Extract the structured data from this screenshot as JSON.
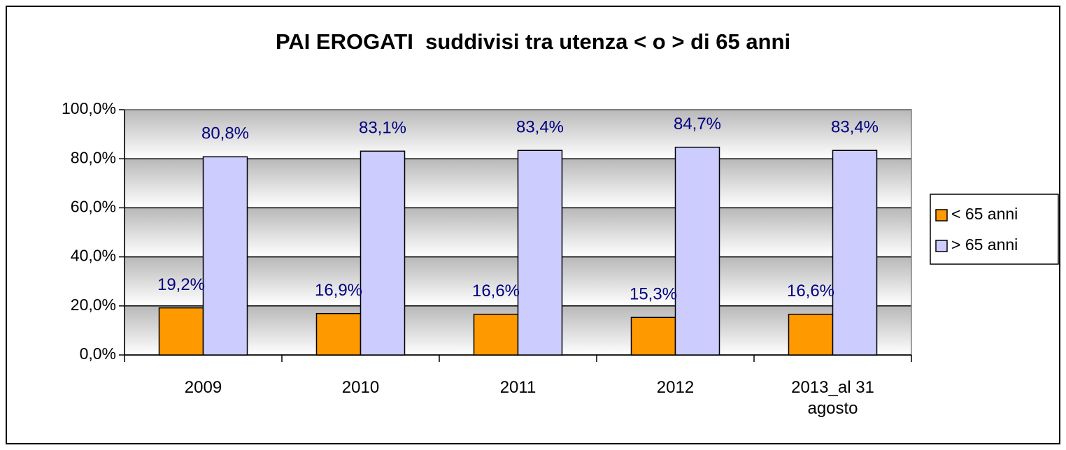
{
  "chart_data": {
    "type": "bar",
    "title": "PAI EROGATI  suddivisi tra utenza < o > di 65 anni",
    "categories": [
      "2009",
      "2010",
      "2011",
      "2012",
      "2013_al 31 agosto"
    ],
    "series": [
      {
        "name": "< 65 anni",
        "color": "#ff9900",
        "values": [
          19.2,
          16.9,
          16.6,
          15.3,
          16.6
        ],
        "value_labels": [
          "19,2%",
          "16,9%",
          "16,6%",
          "15,3%",
          "16,6%"
        ]
      },
      {
        "name": "> 65 anni",
        "color": "#ccccff",
        "values": [
          80.8,
          83.1,
          83.4,
          84.7,
          83.4
        ],
        "value_labels": [
          "80,8%",
          "83,1%",
          "83,4%",
          "84,7%",
          "83,4%"
        ]
      }
    ],
    "ylim": [
      0,
      100
    ],
    "yticks": [
      {
        "value": 0,
        "label": "0,0%"
      },
      {
        "value": 20,
        "label": "20,0%"
      },
      {
        "value": 40,
        "label": "40,0%"
      },
      {
        "value": 60,
        "label": "60,0%"
      },
      {
        "value": 80,
        "label": "80,0%"
      },
      {
        "value": 100,
        "label": "100,0%"
      }
    ],
    "grid": true,
    "legend": "right"
  }
}
